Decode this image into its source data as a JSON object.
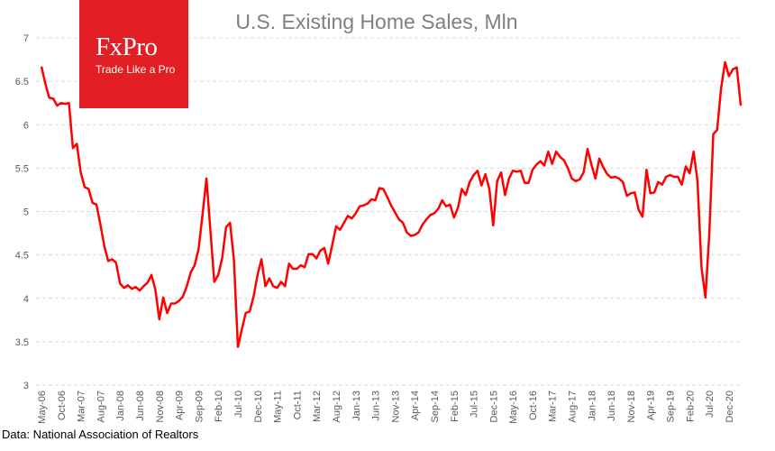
{
  "brand": {
    "name": "FxPro",
    "tagline": "Trade Like a Pro",
    "color": "#e31e24"
  },
  "source": "Data: National Association of Realtors",
  "chart_data": {
    "type": "line",
    "title": "U.S. Existing Home Sales, Mln",
    "ylim": [
      3,
      7
    ],
    "yticks": [
      "3",
      "3.5",
      "4",
      "4.5",
      "5",
      "5.5",
      "6",
      "6.5",
      "7"
    ],
    "grid": true,
    "line_color": "#ff0000",
    "x_labels": [
      "May-06",
      "Oct-06",
      "Mar-07",
      "Aug-07",
      "Jan-08",
      "Jun-08",
      "Nov-08",
      "Apr-09",
      "Sep-09",
      "Feb-10",
      "Jul-10",
      "Dec-10",
      "May-11",
      "Oct-11",
      "Mar-12",
      "Aug-12",
      "Jan-13",
      "Jun-13",
      "Nov-13",
      "Apr-14",
      "Sep-14",
      "Feb-15",
      "Jul-15",
      "Dec-15",
      "May-16",
      "Oct-16",
      "Mar-17",
      "Aug-17",
      "Jan-18",
      "Jun-18",
      "Nov-18",
      "Apr-19",
      "Sep-19",
      "Feb-20",
      "Jul-20",
      "Dec-20"
    ],
    "x_label_step": 5,
    "series": [
      {
        "values": [
          6.67,
          6.47,
          6.31,
          6.3,
          6.22,
          6.25,
          6.24,
          6.25,
          5.73,
          5.78,
          5.45,
          5.28,
          5.26,
          5.1,
          5.08,
          4.85,
          4.6,
          4.43,
          4.45,
          4.41,
          4.17,
          4.12,
          4.15,
          4.11,
          4.13,
          4.09,
          4.14,
          4.18,
          4.27,
          4.1,
          3.76,
          4.01,
          3.83,
          3.94,
          3.94,
          3.97,
          4.02,
          4.14,
          4.3,
          4.38,
          4.57,
          4.96,
          5.38,
          4.78,
          4.19,
          4.27,
          4.46,
          4.82,
          4.87,
          4.44,
          3.44,
          3.64,
          3.83,
          3.85,
          4.02,
          4.27,
          4.45,
          4.14,
          4.23,
          4.14,
          4.12,
          4.19,
          4.14,
          4.4,
          4.34,
          4.34,
          4.38,
          4.36,
          4.51,
          4.51,
          4.46,
          4.55,
          4.58,
          4.4,
          4.61,
          4.83,
          4.79,
          4.87,
          4.95,
          4.92,
          4.98,
          5.06,
          5.07,
          5.09,
          5.14,
          5.13,
          5.27,
          5.26,
          5.17,
          5.07,
          4.99,
          4.91,
          4.87,
          4.76,
          4.72,
          4.73,
          4.76,
          4.85,
          4.91,
          4.96,
          4.98,
          5.03,
          5.13,
          5.06,
          5.08,
          4.93,
          5.04,
          5.26,
          5.19,
          5.34,
          5.42,
          5.47,
          5.3,
          5.43,
          5.26,
          4.84,
          5.35,
          5.45,
          5.19,
          5.38,
          5.47,
          5.46,
          5.47,
          5.33,
          5.33,
          5.48,
          5.54,
          5.58,
          5.53,
          5.69,
          5.55,
          5.69,
          5.63,
          5.59,
          5.5,
          5.38,
          5.35,
          5.37,
          5.45,
          5.72,
          5.54,
          5.38,
          5.61,
          5.51,
          5.43,
          5.39,
          5.4,
          5.38,
          5.34,
          5.18,
          5.21,
          5.22,
          5.02,
          4.94,
          5.48,
          5.21,
          5.22,
          5.34,
          5.31,
          5.4,
          5.42,
          5.4,
          5.4,
          5.31,
          5.52,
          5.44,
          5.69,
          5.35,
          4.36,
          4.01,
          4.74,
          5.89,
          5.94,
          6.42,
          6.72,
          6.56,
          6.64,
          6.66,
          6.22
        ]
      }
    ]
  }
}
